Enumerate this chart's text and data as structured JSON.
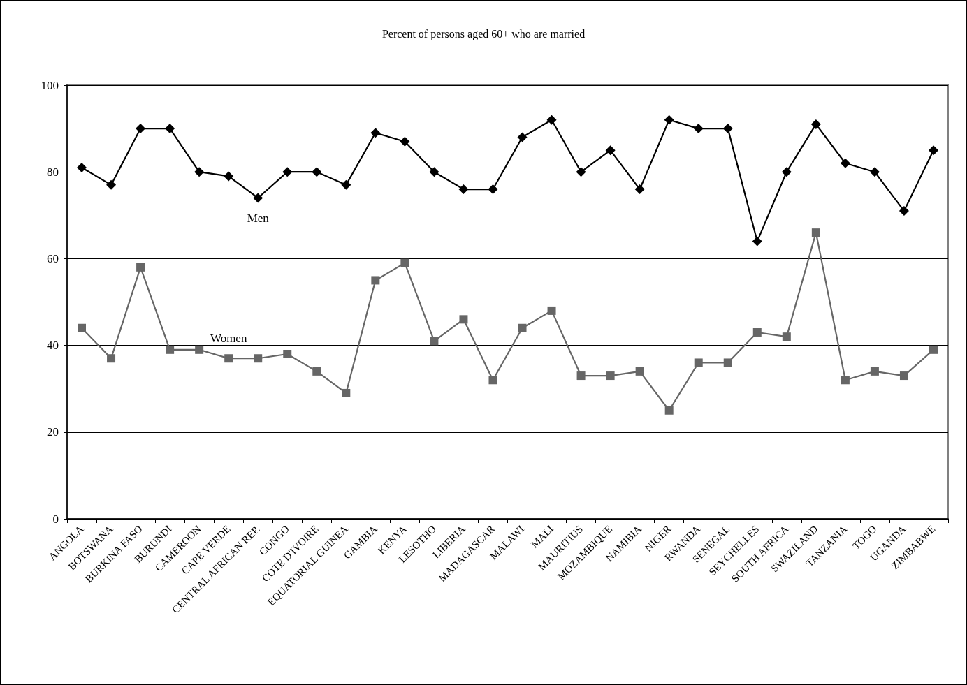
{
  "chart_data": {
    "type": "line",
    "title": "Percent of persons aged 60+ who are married",
    "categories": [
      "ANGOLA",
      "BOTSWANA",
      "BURKINA FASO",
      "BURUNDI",
      "CAMEROON",
      "CAPE VERDE",
      "CENTRAL AFRICAN REP.",
      "CONGO",
      "COTE D'IVOIRE",
      "EQUATORIAL GUINEA",
      "GAMBIA",
      "KENYA",
      "LESOTHO",
      "LIBERIA",
      "MADAGASCAR",
      "MALAWI",
      "MALI",
      "MAURITIUS",
      "MOZAMBIQUE",
      "NAMIBIA",
      "NIGER",
      "RWANDA",
      "SENEGAL",
      "SEYCHELLES",
      "SOUTH AFRICA",
      "SWAZILAND",
      "TANZANIA",
      "TOGO",
      "UGANDA",
      "ZIMBABWE"
    ],
    "series": [
      {
        "name": "Men",
        "color": "#000000",
        "marker": "diamond",
        "values": [
          81,
          77,
          90,
          90,
          80,
          79,
          74,
          80,
          80,
          77,
          89,
          87,
          80,
          76,
          76,
          88,
          92,
          80,
          85,
          76,
          92,
          90,
          90,
          64,
          80,
          91,
          82,
          80,
          71,
          85
        ]
      },
      {
        "name": "Women",
        "color": "#666666",
        "marker": "square",
        "values": [
          44,
          37,
          58,
          39,
          39,
          37,
          37,
          38,
          34,
          29,
          55,
          59,
          41,
          46,
          32,
          44,
          48,
          33,
          33,
          34,
          25,
          36,
          36,
          43,
          42,
          66,
          32,
          34,
          33,
          39
        ]
      }
    ],
    "ylim": [
      0,
      100
    ],
    "yticks": [
      0,
      20,
      40,
      60,
      80,
      100
    ],
    "grid": "y",
    "legend": false,
    "line_style": "solid"
  }
}
